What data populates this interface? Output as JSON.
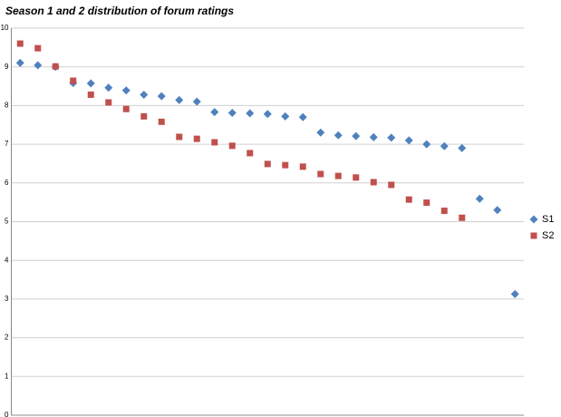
{
  "chart_data": {
    "type": "scatter",
    "title": "Season 1 and 2 distribution of forum ratings",
    "categories": [
      null,
      null,
      null,
      null,
      null,
      null,
      null,
      null,
      null,
      null,
      null,
      null,
      null,
      null,
      null,
      null,
      null,
      null,
      null,
      null,
      null,
      null,
      null,
      null,
      null,
      null,
      null,
      null,
      null
    ],
    "series": [
      {
        "name": "S1",
        "color": "#4f81bd",
        "marker": "diamond",
        "values": [
          9.1,
          9.04,
          9.0,
          8.58,
          8.57,
          8.46,
          8.39,
          8.28,
          8.24,
          8.14,
          8.1,
          7.83,
          7.81,
          7.8,
          7.78,
          7.72,
          7.7,
          7.3,
          7.23,
          7.21,
          7.18,
          7.17,
          7.1,
          7.0,
          6.95,
          6.9,
          5.59,
          5.3,
          3.13
        ]
      },
      {
        "name": "S2",
        "color": "#c0504d",
        "marker": "square",
        "values": [
          9.6,
          9.48,
          9.01,
          8.64,
          8.28,
          8.08,
          7.91,
          7.72,
          7.58,
          7.19,
          7.14,
          7.05,
          6.96,
          6.77,
          6.49,
          6.46,
          6.42,
          6.23,
          6.18,
          6.14,
          6.02,
          5.95,
          5.57,
          5.49,
          5.28,
          5.1,
          null,
          null,
          null
        ]
      }
    ],
    "ylim": [
      0,
      10
    ],
    "yticks": [
      0,
      1,
      2,
      3,
      4,
      5,
      6,
      7,
      8,
      9,
      10
    ],
    "grid": true,
    "legend": "right"
  }
}
